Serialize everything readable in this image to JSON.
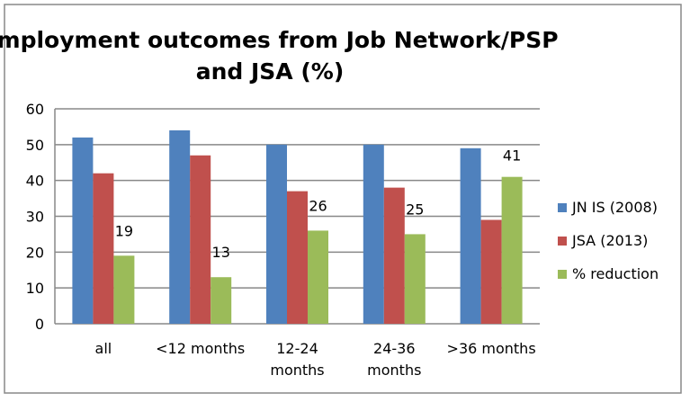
{
  "chart_data": {
    "type": "bar",
    "title_lines": [
      "Employment outcomes from Job Network/PSP",
      "and JSA (%)"
    ],
    "categories": [
      [
        "all"
      ],
      [
        "<12 months"
      ],
      [
        "12-24",
        "months"
      ],
      [
        "24-36",
        "months"
      ],
      [
        ">36 months"
      ]
    ],
    "series": [
      {
        "name": "JN IS (2008)",
        "color": "#4F81BD",
        "values": [
          52,
          54,
          50,
          50,
          49
        ]
      },
      {
        "name": "JSA (2013)",
        "color": "#C0504D",
        "values": [
          42,
          47,
          37,
          38,
          29
        ]
      },
      {
        "name": "% reduction",
        "color": "#9BBB59",
        "values": [
          19,
          13,
          26,
          25,
          41
        ],
        "labels": [
          "19",
          "13",
          "26",
          "25",
          "41"
        ]
      }
    ],
    "ylim": [
      0,
      60
    ],
    "yticks": [
      "0",
      "10",
      "20",
      "30",
      "40",
      "50",
      "60"
    ],
    "grid": true,
    "legend": "right"
  }
}
